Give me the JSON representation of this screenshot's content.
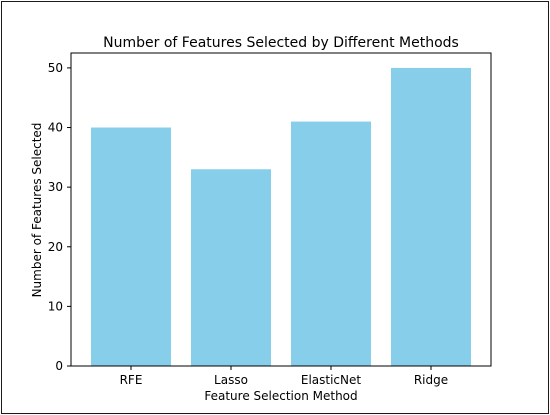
{
  "chart_data": {
    "type": "bar",
    "title": "Number of Features Selected by Different Methods",
    "xlabel": "Feature Selection Method",
    "ylabel": "Number of Features Selected",
    "categories": [
      "RFE",
      "Lasso",
      "ElasticNet",
      "Ridge"
    ],
    "values": [
      40,
      33,
      41,
      50
    ],
    "ylim": [
      0,
      52.5
    ],
    "yticks": [
      0,
      10,
      20,
      30,
      40,
      50
    ],
    "bar_color": "#87ceeb",
    "grid": false,
    "legend": "none"
  }
}
